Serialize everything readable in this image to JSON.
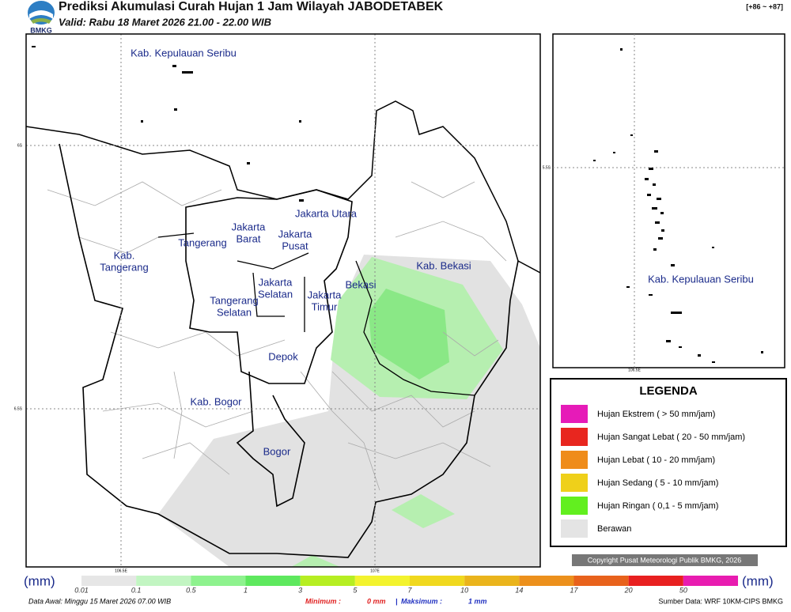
{
  "header": {
    "title": "Prediksi Akumulasi Curah Hujan 1 Jam Wilayah JABODETABEK",
    "valid": "Valid: Rabu 18 Maret 2026 21.00 - 22.00 WIB",
    "range": "[+86 ~ +87]",
    "logo": "BMKG"
  },
  "map": {
    "labels": [
      {
        "lines": [
          "Kab. Kepulauan Seribu"
        ]
      },
      {
        "lines": [
          "Jakarta Utara"
        ]
      },
      {
        "lines": [
          "Jakarta",
          "Barat"
        ]
      },
      {
        "lines": [
          "Jakarta",
          "Pusat"
        ]
      },
      {
        "lines": [
          "Tangerang"
        ]
      },
      {
        "lines": [
          "Kab.",
          "Tangerang"
        ]
      },
      {
        "lines": [
          "Jakarta",
          "Selatan"
        ]
      },
      {
        "lines": [
          "Jakarta",
          "Timur"
        ]
      },
      {
        "lines": [
          "Bekasi"
        ]
      },
      {
        "lines": [
          "Kab. Bekasi"
        ]
      },
      {
        "lines": [
          "Tangerang",
          "Selatan"
        ]
      },
      {
        "lines": [
          "Depok"
        ]
      },
      {
        "lines": [
          "Kab. Bogor"
        ]
      },
      {
        "lines": [
          "Bogor"
        ]
      }
    ],
    "lat": [
      "6S",
      "6.5S"
    ],
    "lon": [
      "106.5E",
      "107E"
    ]
  },
  "inset": {
    "label": "Kab. Kepulauan Seribu",
    "lat": "5.5S",
    "lon": "106.5E"
  },
  "legend": {
    "title": "LEGENDA",
    "items": [
      {
        "label": "Hujan Ekstrem ( > 50 mm/jam)",
        "color": "#e61bb8"
      },
      {
        "label": "Hujan Sangat Lebat ( 20 - 50 mm/jam)",
        "color": "#e8261f"
      },
      {
        "label": "Hujan Lebat ( 10 - 20 mm/jam)",
        "color": "#ef8c1a"
      },
      {
        "label": "Hujan Sedang ( 5 - 10 mm/jam)",
        "color": "#efd01a"
      },
      {
        "label": "Hujan Ringan ( 0,1 - 5 mm/jam)",
        "color": "#62ef1f"
      },
      {
        "label": "Berawan",
        "color": "#e4e4e4"
      }
    ]
  },
  "copyright": "Copyright Pusat Meteorologi Publik BMKG, 2026",
  "colorbar": {
    "unit": "(mm)",
    "segments": [
      {
        "label": "0.01",
        "color": "#e6e6e6"
      },
      {
        "label": "0.1",
        "color": "#c2f5c2"
      },
      {
        "label": "0.5",
        "color": "#8ef28e"
      },
      {
        "label": "1",
        "color": "#5ee85e"
      },
      {
        "label": "3",
        "color": "#b6ee22"
      },
      {
        "label": "5",
        "color": "#f3f32e"
      },
      {
        "label": "7",
        "color": "#f0d81e"
      },
      {
        "label": "10",
        "color": "#eab41c"
      },
      {
        "label": "14",
        "color": "#ec901c"
      },
      {
        "label": "17",
        "color": "#e8621c"
      },
      {
        "label": "20",
        "color": "#e82020"
      },
      {
        "label": "50",
        "color": "#e81cb0"
      }
    ]
  },
  "footer": {
    "data_awal": "Data Awal: Minggu 15 Maret 2026 07.00 WIB",
    "min_label": "Minimum :",
    "min": "0 mm",
    "sep": "|",
    "max_label": "Maksimum :",
    "max": "1 mm",
    "source": "Sumber Data: WRF 10KM-CIPS BMKG"
  }
}
